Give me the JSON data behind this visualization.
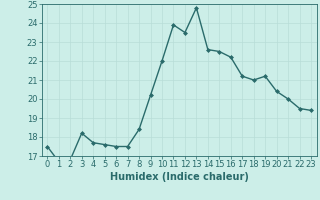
{
  "x": [
    0,
    1,
    2,
    3,
    4,
    5,
    6,
    7,
    8,
    9,
    10,
    11,
    12,
    13,
    14,
    15,
    16,
    17,
    18,
    19,
    20,
    21,
    22,
    23
  ],
  "y": [
    17.5,
    16.7,
    16.8,
    18.2,
    17.7,
    17.6,
    17.5,
    17.5,
    18.4,
    20.2,
    22.0,
    23.9,
    23.5,
    24.8,
    22.6,
    22.5,
    22.2,
    21.2,
    21.0,
    21.2,
    20.4,
    20.0,
    19.5,
    19.4
  ],
  "line_color": "#2a6b6b",
  "marker": "D",
  "marker_size": 2,
  "bg_color": "#cceee8",
  "grid_color": "#b8ddd8",
  "xlabel": "Humidex (Indice chaleur)",
  "ylim": [
    17,
    25
  ],
  "xlim": [
    -0.5,
    23.5
  ],
  "yticks": [
    17,
    18,
    19,
    20,
    21,
    22,
    23,
    24,
    25
  ],
  "xticks": [
    0,
    1,
    2,
    3,
    4,
    5,
    6,
    7,
    8,
    9,
    10,
    11,
    12,
    13,
    14,
    15,
    16,
    17,
    18,
    19,
    20,
    21,
    22,
    23
  ],
  "tick_color": "#2a6b6b",
  "label_fontsize": 6,
  "axis_label_fontsize": 7,
  "line_width": 1.0
}
